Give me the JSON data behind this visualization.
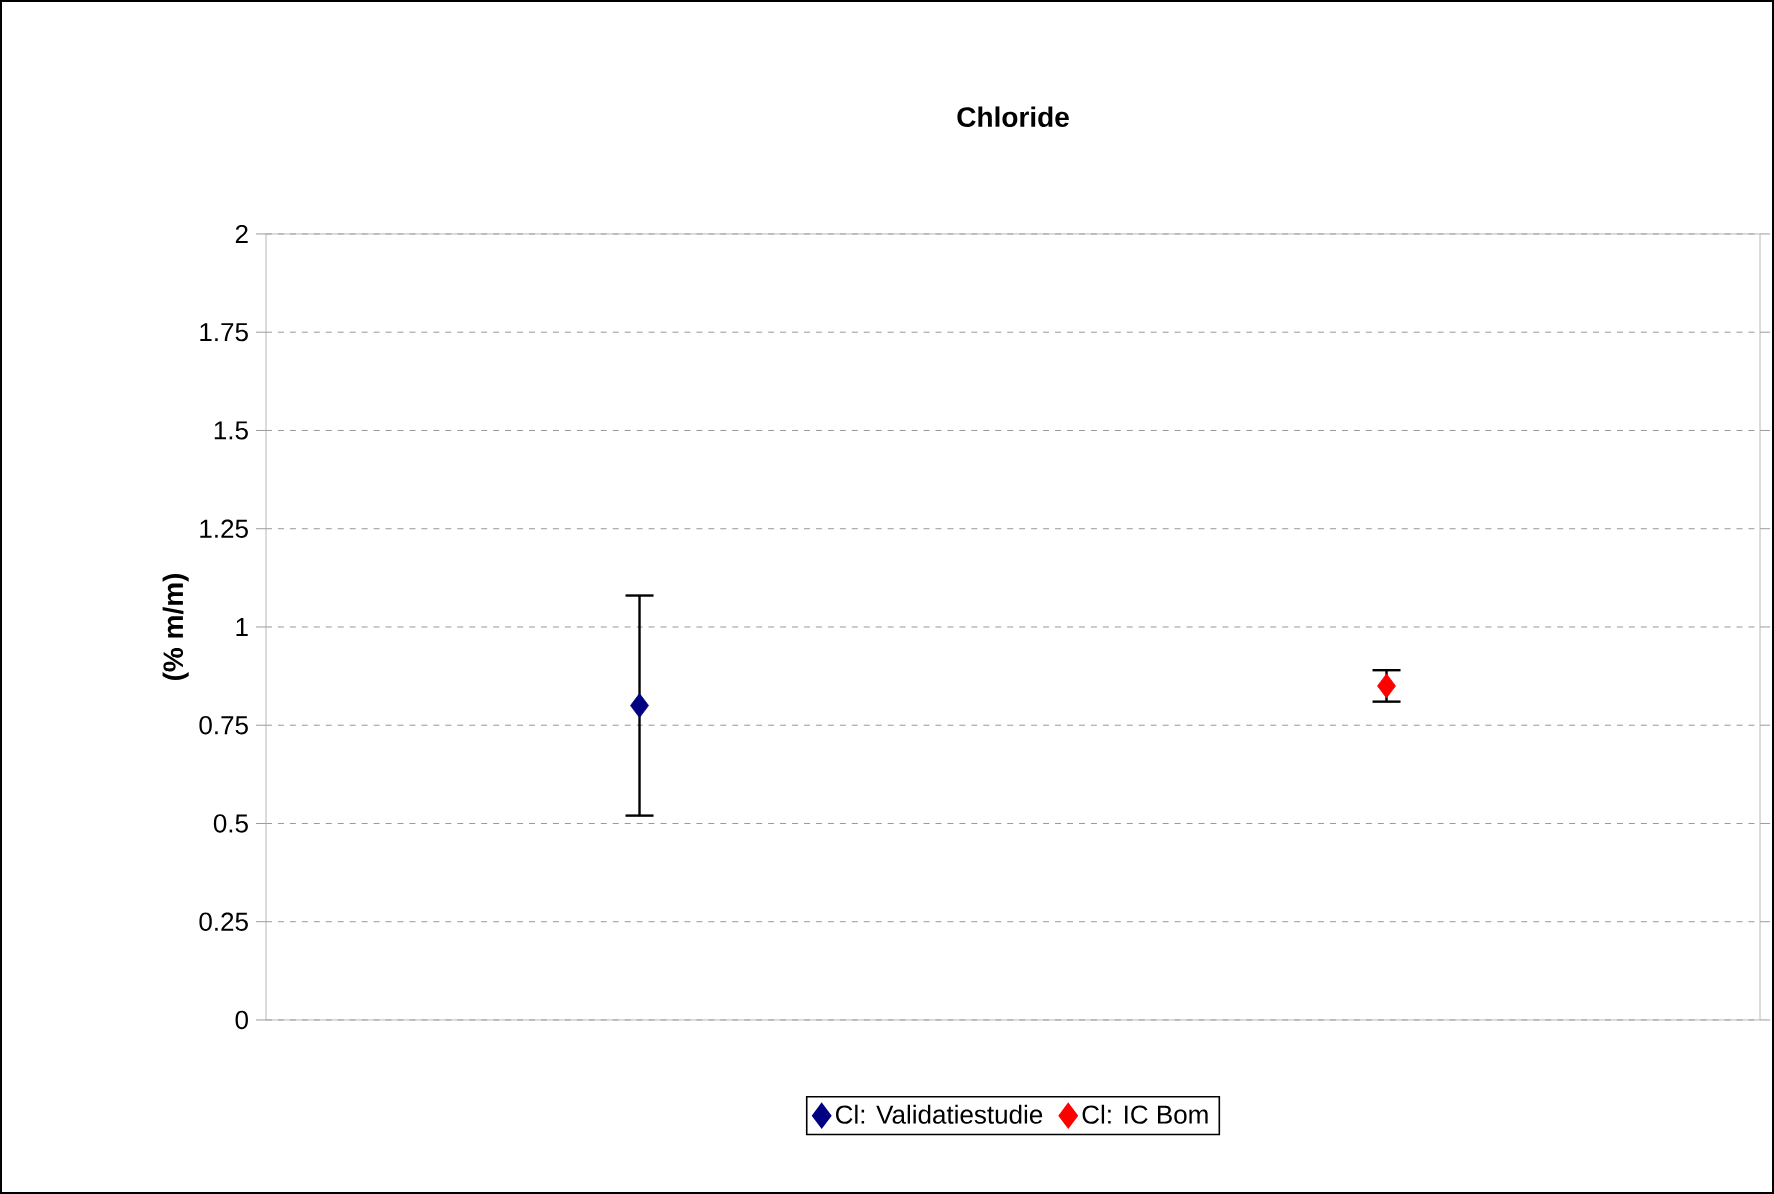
{
  "chart_data": {
    "type": "scatter",
    "title": "Chloride",
    "ylabel": "(% m/m)",
    "categories": [
      null,
      null
    ],
    "series": [
      {
        "name": "Cl: Validatiestudie",
        "color": "#000080",
        "values": [
          0.8,
          null
        ],
        "errors": [
          0.28,
          null
        ]
      },
      {
        "name": "Cl: IC Bom",
        "color": "#ff0000",
        "values": [
          null,
          0.85
        ],
        "errors": [
          null,
          0.04
        ]
      }
    ],
    "ylim": [
      0,
      2
    ],
    "yticks": [
      0,
      0.25,
      0.5,
      0.75,
      1,
      1.25,
      1.5,
      1.75,
      2
    ],
    "grid": "y",
    "legend": "bottom",
    "marker": "diamond",
    "tick_labels": "y"
  }
}
